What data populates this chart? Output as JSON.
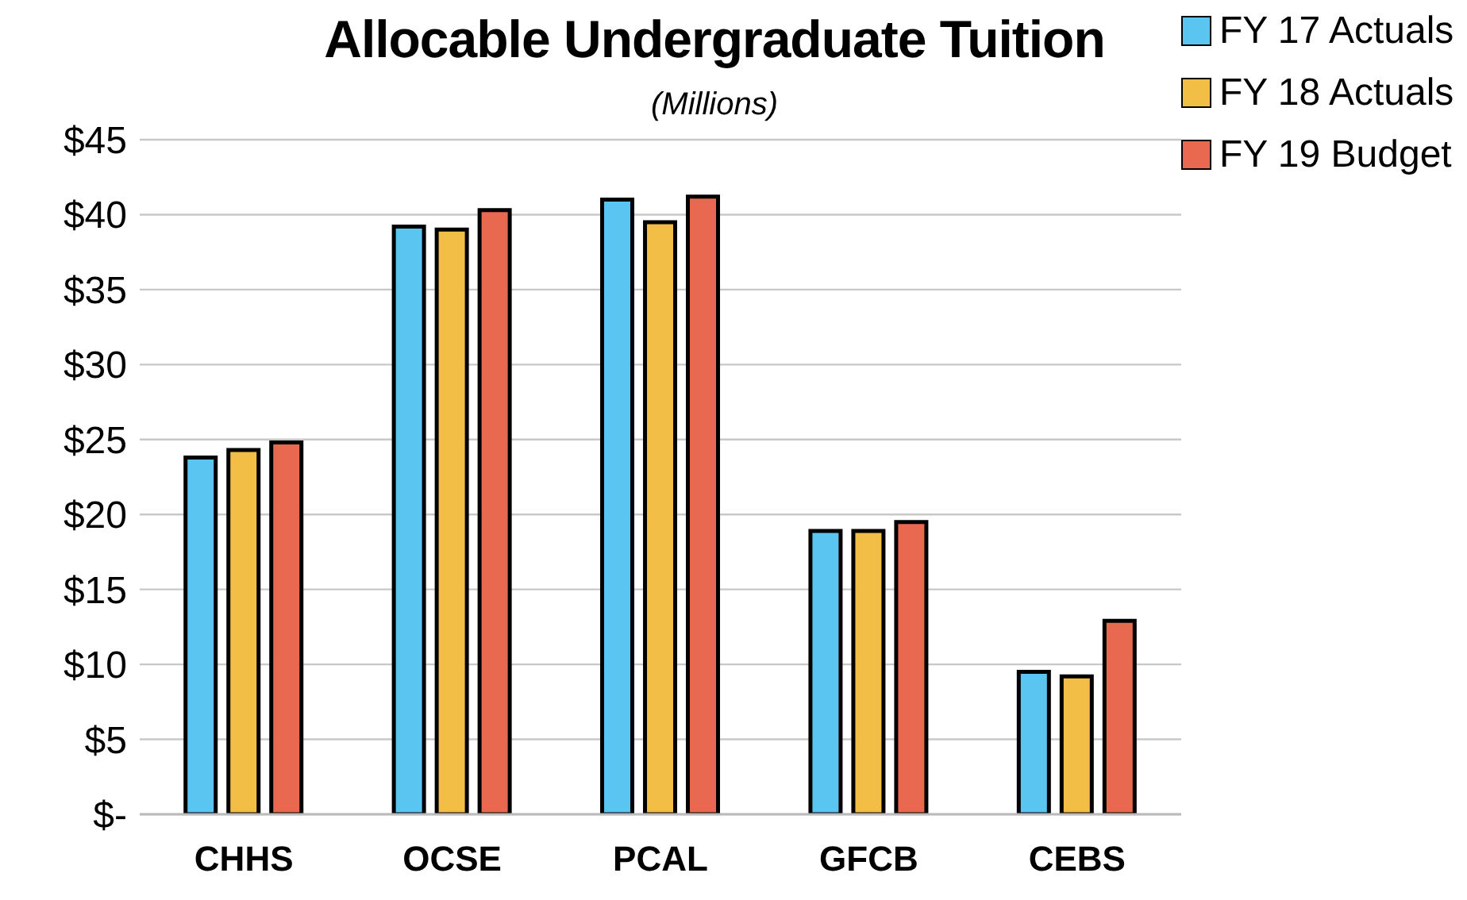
{
  "chart_data": {
    "type": "bar",
    "title": "Allocable Undergraduate Tuition",
    "subtitle": "(Millions)",
    "categories": [
      "CHHS",
      "OCSE",
      "PCAL",
      "GFCB",
      "CEBS"
    ],
    "series": [
      {
        "name": "FY 17 Actuals",
        "color": "#5bc5f2",
        "values": [
          23.8,
          39.2,
          41.0,
          18.9,
          9.5
        ]
      },
      {
        "name": "FY 18 Actuals",
        "color": "#f2be45",
        "values": [
          24.3,
          39.0,
          39.5,
          18.9,
          9.2
        ]
      },
      {
        "name": "FY 19 Budget",
        "color": "#e8694f",
        "values": [
          24.8,
          40.3,
          41.2,
          19.5,
          12.9
        ]
      }
    ],
    "ylim": [
      0,
      45
    ],
    "yticks": [
      {
        "value": 0,
        "label": "$-"
      },
      {
        "value": 5,
        "label": "$5"
      },
      {
        "value": 10,
        "label": "$10"
      },
      {
        "value": 15,
        "label": "$15"
      },
      {
        "value": 20,
        "label": "$20"
      },
      {
        "value": 25,
        "label": "$25"
      },
      {
        "value": 30,
        "label": "$30"
      },
      {
        "value": 35,
        "label": "$35"
      },
      {
        "value": 40,
        "label": "$40"
      },
      {
        "value": 45,
        "label": "$45"
      }
    ],
    "grid": "y",
    "legend": "top right"
  }
}
